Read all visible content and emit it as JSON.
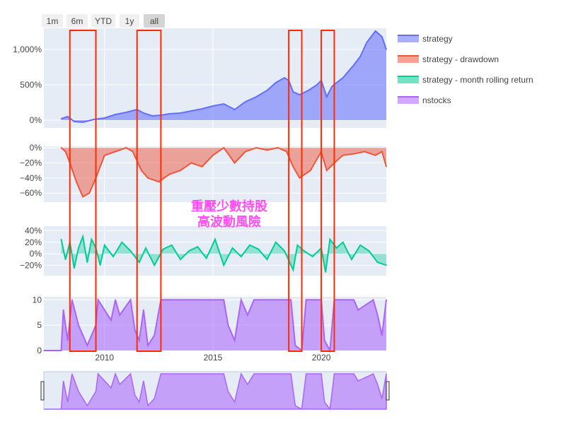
{
  "range_selector": {
    "buttons": [
      {
        "label": "1m",
        "active": false
      },
      {
        "label": "6m",
        "active": false
      },
      {
        "label": "YTD",
        "active": false
      },
      {
        "label": "1y",
        "active": false
      },
      {
        "label": "all",
        "active": true
      }
    ]
  },
  "annotation": {
    "line1": "重壓少數持股",
    "line2": "高波動風險",
    "color": "#ff4df2"
  },
  "colors": {
    "strategy": "#636efa",
    "drawdown": "#ef553b",
    "rolling": "#00cc96",
    "nstocks": "#ab63fa",
    "plot_bg": "#e5ecf6",
    "highlight": "#ff2a00"
  },
  "chart_data": {
    "type": "area",
    "x_range": [
      2007.2,
      2023.0
    ],
    "x_ticks": [
      2010,
      2015,
      2020
    ],
    "x_tick_labels": [
      "2010",
      "2015",
      "2020"
    ],
    "legend": {
      "position": "right",
      "entries": [
        "strategy",
        "strategy - drawdown",
        "strategy - month rolling return",
        "nstocks"
      ]
    },
    "highlight_periods": [
      [
        2008.4,
        2009.6
      ],
      [
        2011.5,
        2012.6
      ],
      [
        2018.5,
        2019.1
      ],
      [
        2020.0,
        2020.6
      ]
    ],
    "panels": [
      {
        "series": "strategy",
        "y_ticks": [
          0,
          500,
          1000
        ],
        "y_tick_labels": [
          "0%",
          "500%",
          "1,000%"
        ],
        "y_range": [
          -110,
          1300
        ],
        "x": [
          2008.0,
          2008.3,
          2008.6,
          2009.0,
          2009.5,
          2010.0,
          2010.5,
          2011.0,
          2011.5,
          2011.8,
          2012.2,
          2012.6,
          2013.0,
          2013.5,
          2014.0,
          2014.5,
          2015.0,
          2015.5,
          2016.0,
          2016.5,
          2017.0,
          2017.5,
          2017.9,
          2018.3,
          2018.5,
          2018.7,
          2019.0,
          2019.4,
          2019.8,
          2020.0,
          2020.25,
          2020.5,
          2021.0,
          2021.5,
          2021.8,
          2022.1,
          2022.5,
          2022.8,
          2023.0
        ],
        "y": [
          20,
          50,
          -20,
          -30,
          10,
          30,
          80,
          110,
          150,
          100,
          60,
          70,
          90,
          100,
          130,
          160,
          200,
          230,
          150,
          260,
          330,
          420,
          530,
          600,
          560,
          400,
          360,
          420,
          500,
          560,
          330,
          480,
          600,
          780,
          900,
          1100,
          1260,
          1180,
          1000
        ]
      },
      {
        "series": "strategy - drawdown",
        "y_ticks": [
          0,
          -20,
          -40,
          -60
        ],
        "y_tick_labels": [
          "0%",
          "−20%",
          "−40%",
          "−60%"
        ],
        "y_range": [
          -72,
          2
        ],
        "x": [
          2008.0,
          2008.2,
          2008.4,
          2008.7,
          2009.0,
          2009.3,
          2009.6,
          2010.0,
          2010.5,
          2011.0,
          2011.3,
          2011.7,
          2012.0,
          2012.5,
          2013.0,
          2013.5,
          2014.0,
          2014.5,
          2015.0,
          2015.5,
          2016.0,
          2016.5,
          2017.0,
          2017.5,
          2018.0,
          2018.4,
          2018.7,
          2019.0,
          2019.5,
          2020.0,
          2020.25,
          2020.6,
          2021.0,
          2021.5,
          2022.0,
          2022.5,
          2022.8,
          2023.0
        ],
        "y": [
          0,
          -5,
          -20,
          -45,
          -65,
          -60,
          -40,
          -10,
          -5,
          0,
          -5,
          -30,
          -40,
          -45,
          -35,
          -30,
          -20,
          -25,
          -10,
          0,
          -20,
          -5,
          0,
          -3,
          0,
          -5,
          -25,
          -40,
          -30,
          -5,
          -30,
          -20,
          -10,
          -8,
          -5,
          -10,
          -5,
          -25
        ]
      },
      {
        "series": "strategy - month rolling return",
        "y_ticks": [
          40,
          20,
          0,
          -20
        ],
        "y_tick_labels": [
          "40%",
          "20%",
          "0%",
          "−20%"
        ],
        "y_range": [
          -38,
          48
        ],
        "x": [
          2008.0,
          2008.2,
          2008.4,
          2008.6,
          2008.8,
          2009.0,
          2009.2,
          2009.4,
          2009.6,
          2009.8,
          2010.0,
          2010.4,
          2010.8,
          2011.2,
          2011.6,
          2011.9,
          2012.3,
          2012.7,
          2013.1,
          2013.5,
          2013.9,
          2014.3,
          2014.7,
          2015.1,
          2015.5,
          2015.9,
          2016.3,
          2016.7,
          2017.1,
          2017.5,
          2017.9,
          2018.3,
          2018.7,
          2018.9,
          2019.2,
          2019.6,
          2020.0,
          2020.2,
          2020.4,
          2020.7,
          2021.0,
          2021.4,
          2021.8,
          2022.2,
          2022.6,
          2023.0
        ],
        "y": [
          25,
          -10,
          20,
          -25,
          10,
          30,
          -15,
          25,
          10,
          -20,
          15,
          -5,
          20,
          5,
          -15,
          10,
          -20,
          8,
          15,
          -10,
          5,
          12,
          -8,
          25,
          -20,
          10,
          -5,
          15,
          8,
          -10,
          20,
          5,
          -28,
          15,
          5,
          -5,
          10,
          -32,
          25,
          10,
          20,
          -10,
          15,
          5,
          -15,
          -20
        ]
      },
      {
        "series": "nstocks",
        "y_ticks": [
          0,
          5,
          10
        ],
        "y_tick_labels": [
          "0",
          "5",
          "10"
        ],
        "y_range": [
          0,
          10.6
        ],
        "x": [
          2007.2,
          2008.0,
          2008.1,
          2008.3,
          2008.5,
          2008.8,
          2009.2,
          2009.6,
          2009.7,
          2010.3,
          2010.5,
          2010.7,
          2011.2,
          2011.4,
          2011.6,
          2011.8,
          2012.0,
          2012.3,
          2012.6,
          2012.8,
          2015.5,
          2015.7,
          2016.0,
          2016.3,
          2016.6,
          2016.9,
          2018.6,
          2018.8,
          2019.1,
          2019.3,
          2020.0,
          2020.15,
          2020.4,
          2020.6,
          2021.5,
          2021.7,
          2022.4,
          2022.6,
          2022.8,
          2023.0
        ],
        "y": [
          0,
          0,
          8,
          2,
          10,
          5,
          1,
          5,
          10,
          6,
          10,
          7,
          10,
          4,
          2,
          8,
          1,
          3,
          10,
          10,
          10,
          5,
          2,
          10,
          7,
          10,
          10,
          1,
          0,
          10,
          10,
          2,
          0,
          10,
          10,
          8,
          10,
          7,
          3,
          10
        ]
      }
    ]
  }
}
